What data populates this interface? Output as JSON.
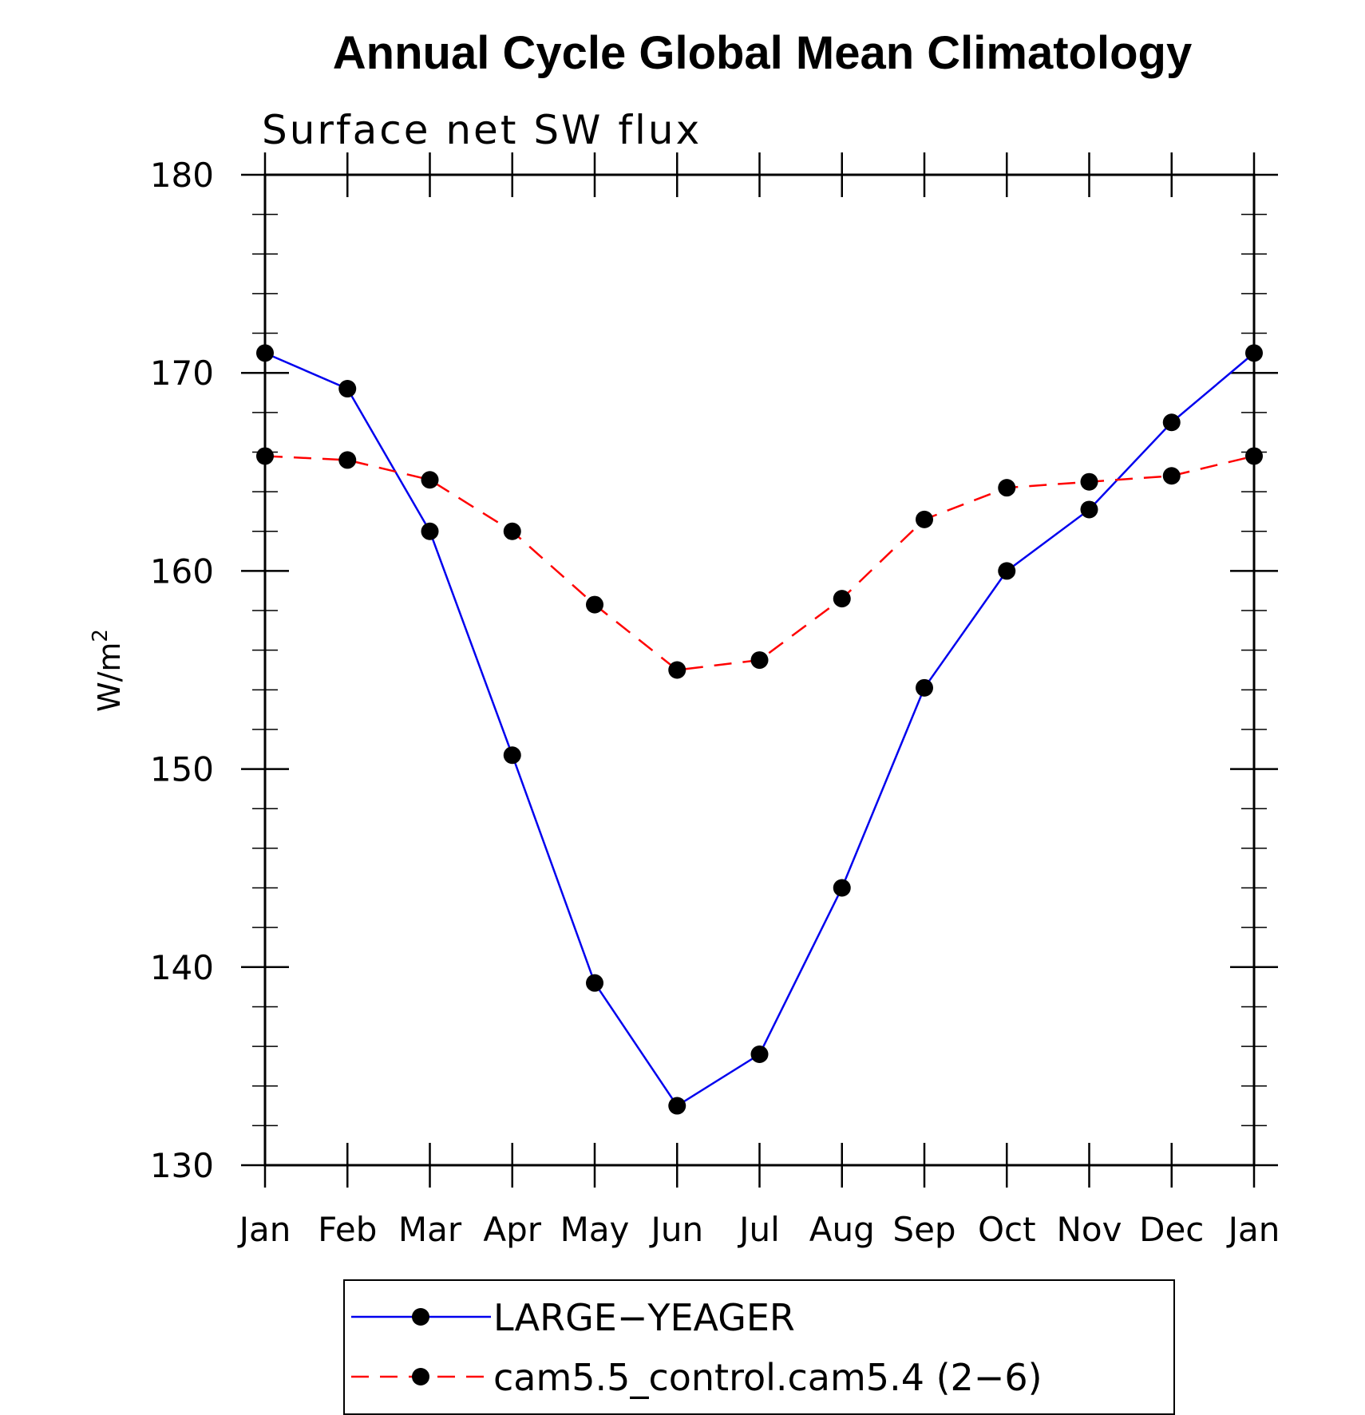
{
  "chart_data": {
    "type": "line",
    "title": "Annual Cycle Global Mean Climatology",
    "subtitle": "Surface net SW flux",
    "ylabel": "W/m",
    "ylabel_superscript": "2",
    "xlabel": "",
    "categories": [
      "Jan",
      "Feb",
      "Mar",
      "Apr",
      "May",
      "Jun",
      "Jul",
      "Aug",
      "Sep",
      "Oct",
      "Nov",
      "Dec",
      "Jan"
    ],
    "ylim": [
      130,
      180
    ],
    "yticks": [
      130,
      140,
      150,
      160,
      170,
      180
    ],
    "yticks_labels": [
      "130",
      "140",
      "150",
      "160",
      "170",
      "180"
    ],
    "grid": false,
    "legend_position": "bottom",
    "series": [
      {
        "name": "LARGE−YEAGER",
        "color": "#0000ee",
        "style": "solid",
        "marker": "filled-circle",
        "values": [
          171.0,
          169.2,
          162.0,
          150.7,
          139.2,
          133.0,
          135.6,
          144.0,
          154.1,
          160.0,
          163.1,
          167.5,
          171.0
        ]
      },
      {
        "name": "cam5.5_control.cam5.4 (2−6)",
        "color": "#ff0000",
        "style": "dashed",
        "marker": "filled-circle",
        "values": [
          165.8,
          165.6,
          164.6,
          162.0,
          158.3,
          155.0,
          155.5,
          158.6,
          162.6,
          164.2,
          164.5,
          164.8,
          165.8
        ]
      }
    ]
  }
}
